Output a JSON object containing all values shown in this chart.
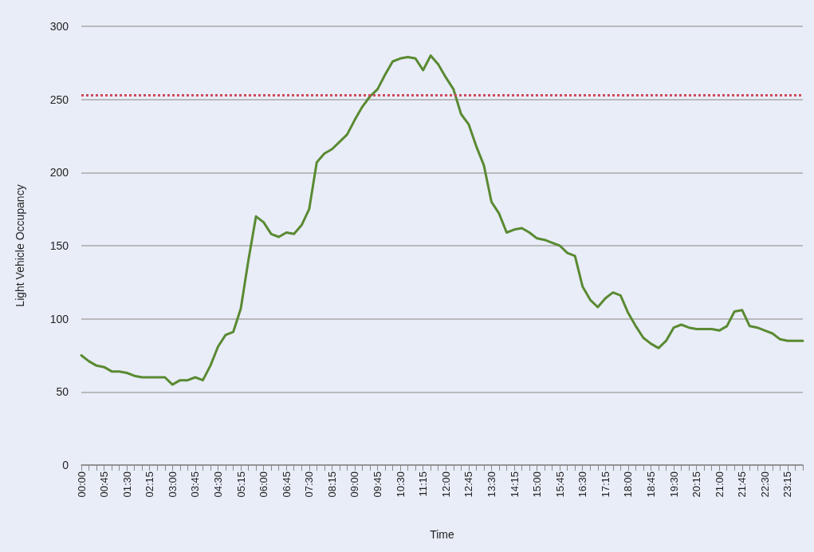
{
  "chart_data": {
    "type": "line",
    "xlabel": "Time",
    "ylabel": "Light Vehicle Occupancy",
    "categories": [
      "00:00",
      null,
      null,
      "00:45",
      null,
      null,
      "01:30",
      null,
      null,
      "02:15",
      null,
      null,
      "03:00",
      null,
      null,
      "03:45",
      null,
      null,
      "04:30",
      null,
      null,
      "05:15",
      null,
      null,
      "06:00",
      null,
      null,
      "06:45",
      null,
      null,
      "07:30",
      null,
      null,
      "08:15",
      null,
      null,
      "09:00",
      null,
      null,
      "09:45",
      null,
      null,
      "10:30",
      null,
      null,
      "11:15",
      null,
      null,
      "12:00",
      null,
      null,
      "12:45",
      null,
      null,
      "13:30",
      null,
      null,
      "14:15",
      null,
      null,
      "15:00",
      null,
      null,
      "15:45",
      null,
      null,
      "16:30",
      null,
      null,
      "17:15",
      null,
      null,
      "18:00",
      null,
      null,
      "18:45",
      null,
      null,
      "19:30",
      null,
      null,
      "20:15",
      null,
      null,
      "21:00",
      null,
      null,
      "21:45",
      null,
      null,
      "22:30",
      null,
      null,
      "23:15",
      null,
      null
    ],
    "series": [
      {
        "color": "#5a8a32",
        "values": [
          75,
          71,
          68,
          67,
          64,
          64,
          63,
          61,
          60,
          60,
          60,
          60,
          55,
          58,
          58,
          60,
          58,
          68,
          81,
          89,
          91,
          107,
          140,
          170,
          166,
          158,
          156,
          159,
          158,
          164,
          175,
          207,
          213,
          216,
          221,
          226,
          236,
          245,
          252,
          257,
          267,
          276,
          278,
          279,
          278,
          270,
          280,
          274,
          265,
          257,
          240,
          233,
          218,
          205,
          180,
          172,
          159,
          161,
          162,
          159,
          155,
          154,
          152,
          150,
          145,
          143,
          122,
          113,
          108,
          114,
          118,
          116,
          104,
          95,
          87,
          83,
          80,
          85,
          94,
          96,
          94,
          93,
          93,
          93,
          92,
          95,
          105,
          106,
          95,
          94,
          92,
          90,
          86,
          85,
          85,
          85
        ]
      }
    ],
    "ylim": [
      0,
      300
    ],
    "yticks": [
      0,
      50,
      100,
      150,
      200,
      250,
      300
    ],
    "grid": "y",
    "marker": "none",
    "line_style": "solid",
    "ref_lines": [
      {
        "axis": "y",
        "value": 253,
        "color": "#d04a5a",
        "line_style": "dotted"
      }
    ]
  }
}
